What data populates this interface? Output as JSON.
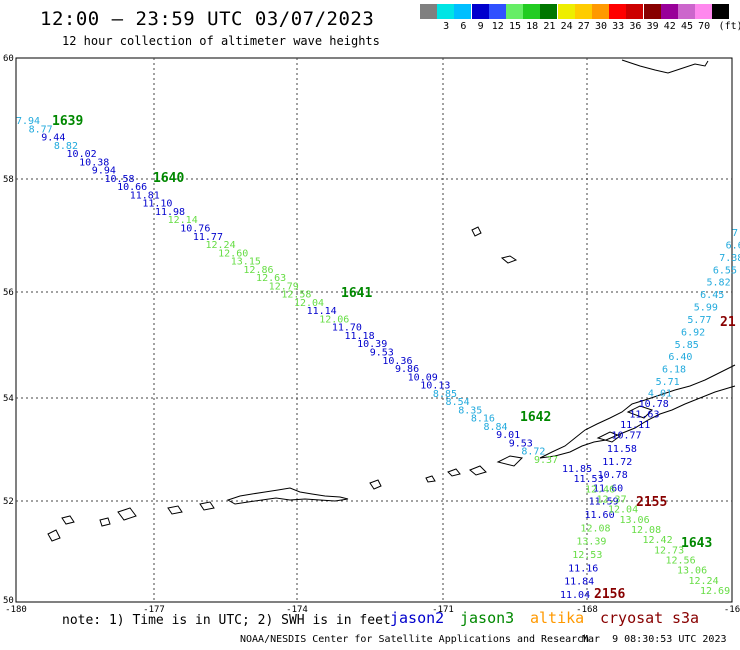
{
  "header": {
    "title": "12:00 – 23:59 UTC 03/07/2023",
    "subtitle": "12 hour collection of altimeter wave heights"
  },
  "scale": {
    "unit_label": "(ft)",
    "bins": [
      {
        "label": "",
        "color": "#808080"
      },
      {
        "label": "3",
        "color": "#00e5e5"
      },
      {
        "label": "6",
        "color": "#00bfff"
      },
      {
        "label": "9",
        "color": "#0000cd"
      },
      {
        "label": "12",
        "color": "#3050ff"
      },
      {
        "label": "15",
        "color": "#66ee66"
      },
      {
        "label": "18",
        "color": "#22cc22"
      },
      {
        "label": "21",
        "color": "#007700"
      },
      {
        "label": "24",
        "color": "#eeee00"
      },
      {
        "label": "27",
        "color": "#ffcc00"
      },
      {
        "label": "30",
        "color": "#ff9900"
      },
      {
        "label": "33",
        "color": "#ff0000"
      },
      {
        "label": "36",
        "color": "#cc0000"
      },
      {
        "label": "39",
        "color": "#880000"
      },
      {
        "label": "42",
        "color": "#990099"
      },
      {
        "label": "45",
        "color": "#cc66cc"
      },
      {
        "label": "70",
        "color": "#ff88ee"
      },
      {
        "label": "",
        "color": "#000000"
      }
    ]
  },
  "axes": {
    "lat_labels": [
      "60",
      "58",
      "56",
      "54",
      "52",
      "50"
    ],
    "lon_labels": [
      "-180",
      "-177",
      "-174",
      "-171",
      "-168",
      "-16"
    ]
  },
  "track_labels": [
    {
      "text": "1639",
      "color": "#008800"
    },
    {
      "text": "1640",
      "color": "#008800"
    },
    {
      "text": "1641",
      "color": "#008800"
    },
    {
      "text": "1642",
      "color": "#008800"
    },
    {
      "text": "1643",
      "color": "#008800"
    },
    {
      "text": "2155",
      "color": "#880000"
    },
    {
      "text": "2156",
      "color": "#880000"
    },
    {
      "text": "21",
      "color": "#880000"
    }
  ],
  "track_a": [
    {
      "v": "7.94",
      "c": "#22aadd"
    },
    {
      "v": "8.77",
      "c": "#22aadd"
    },
    {
      "v": "9.44",
      "c": "#0000cc"
    },
    {
      "v": "8.82",
      "c": "#22aadd"
    },
    {
      "v": "10.02",
      "c": "#0000cc"
    },
    {
      "v": "10.38",
      "c": "#0000cc"
    },
    {
      "v": "9.94",
      "c": "#0000cc"
    },
    {
      "v": "10.58",
      "c": "#0000cc"
    },
    {
      "v": "10.66",
      "c": "#0000cc"
    },
    {
      "v": "11.81",
      "c": "#0000cc"
    },
    {
      "v": "11.10",
      "c": "#0000cc"
    },
    {
      "v": "11.98",
      "c": "#0000cc"
    },
    {
      "v": "12.14",
      "c": "#66dd44"
    },
    {
      "v": "10.76",
      "c": "#0000cc"
    },
    {
      "v": "11.77",
      "c": "#0000cc"
    },
    {
      "v": "12.24",
      "c": "#66dd44"
    },
    {
      "v": "12.60",
      "c": "#66dd44"
    },
    {
      "v": "13.15",
      "c": "#66dd44"
    },
    {
      "v": "12.86",
      "c": "#66dd44"
    },
    {
      "v": "12.63",
      "c": "#66dd44"
    },
    {
      "v": "12.79",
      "c": "#66dd44"
    },
    {
      "v": "12.58",
      "c": "#66dd44"
    },
    {
      "v": "12.04",
      "c": "#66dd44"
    },
    {
      "v": "11.14",
      "c": "#0000cc"
    },
    {
      "v": "12.06",
      "c": "#66dd44"
    },
    {
      "v": "11.70",
      "c": "#0000cc"
    },
    {
      "v": "11.18",
      "c": "#0000cc"
    },
    {
      "v": "10.39",
      "c": "#0000cc"
    },
    {
      "v": "9.53",
      "c": "#0000cc"
    },
    {
      "v": "10.36",
      "c": "#0000cc"
    },
    {
      "v": "9.86",
      "c": "#0000cc"
    },
    {
      "v": "10.09",
      "c": "#0000cc"
    },
    {
      "v": "10.13",
      "c": "#0000cc"
    },
    {
      "v": "8.85",
      "c": "#22aadd"
    },
    {
      "v": "8.54",
      "c": "#22aadd"
    },
    {
      "v": "8.35",
      "c": "#22aadd"
    },
    {
      "v": "8.16",
      "c": "#22aadd"
    },
    {
      "v": "8.84",
      "c": "#22aadd"
    },
    {
      "v": "9.01",
      "c": "#0000cc"
    },
    {
      "v": "9.53",
      "c": "#0000cc"
    },
    {
      "v": "8.72",
      "c": "#22aadd"
    },
    {
      "v": "9.37",
      "c": "#66dd44"
    }
  ],
  "track_b": [
    {
      "v": "7.",
      "c": "#22aadd"
    },
    {
      "v": "6.6",
      "c": "#22aadd"
    },
    {
      "v": "7.38",
      "c": "#22aadd"
    },
    {
      "v": "6.55",
      "c": "#22aadd"
    },
    {
      "v": "5.82",
      "c": "#22aadd"
    },
    {
      "v": "6.45",
      "c": "#22aadd"
    },
    {
      "v": "5.99",
      "c": "#22aadd"
    },
    {
      "v": "5.77",
      "c": "#22aadd"
    },
    {
      "v": "6.92",
      "c": "#22aadd"
    },
    {
      "v": "5.85",
      "c": "#22aadd"
    },
    {
      "v": "6.40",
      "c": "#22aadd"
    },
    {
      "v": "6.18",
      "c": "#22aadd"
    },
    {
      "v": "5.71",
      "c": "#22aadd"
    },
    {
      "v": "4.01",
      "c": "#22aadd"
    },
    {
      "v": "10.78",
      "c": "#0000cc"
    },
    {
      "v": "11.63",
      "c": "#0000cc"
    },
    {
      "v": "11.11",
      "c": "#0000cc"
    },
    {
      "v": "10.77",
      "c": "#0000cc"
    },
    {
      "v": "11.58",
      "c": "#0000cc"
    },
    {
      "v": "11.72",
      "c": "#0000cc"
    },
    {
      "v": "10.78",
      "c": "#0000cc"
    },
    {
      "v": "11.60",
      "c": "#0000cc"
    },
    {
      "v": "11.59",
      "c": "#0000cc"
    },
    {
      "v": "11.60",
      "c": "#0000cc"
    },
    {
      "v": "12.08",
      "c": "#66dd44"
    },
    {
      "v": "13.39",
      "c": "#66dd44"
    },
    {
      "v": "12.53",
      "c": "#66dd44"
    },
    {
      "v": "11.16",
      "c": "#0000cc"
    },
    {
      "v": "11.84",
      "c": "#0000cc"
    },
    {
      "v": "11.04",
      "c": "#0000cc"
    }
  ],
  "track_c": [
    {
      "v": "11.85",
      "c": "#0000cc"
    },
    {
      "v": "11.53",
      "c": "#0000cc"
    },
    {
      "v": "12.46",
      "c": "#66dd44"
    },
    {
      "v": "12.37",
      "c": "#66dd44"
    },
    {
      "v": "12.04",
      "c": "#66dd44"
    },
    {
      "v": "13.06",
      "c": "#66dd44"
    },
    {
      "v": "12.08",
      "c": "#66dd44"
    },
    {
      "v": "12.42",
      "c": "#66dd44"
    },
    {
      "v": "12.73",
      "c": "#66dd44"
    },
    {
      "v": "12.56",
      "c": "#66dd44"
    },
    {
      "v": "13.06",
      "c": "#66dd44"
    },
    {
      "v": "12.24",
      "c": "#66dd44"
    },
    {
      "v": "12.69",
      "c": "#66dd44"
    }
  ],
  "footer": {
    "note": "note: 1) Time is in UTC; 2) SWH is in feet",
    "satellites": [
      {
        "name": "jason2",
        "color": "#0000cc"
      },
      {
        "name": "jason3",
        "color": "#008800"
      },
      {
        "name": "altika",
        "color": "#ff9900"
      },
      {
        "name": "cryosat",
        "color": "#880000"
      },
      {
        "name": "s3a",
        "color": "#880000"
      }
    ],
    "credit": "NOAA/NESDIS Center for Satellite Applications and Research",
    "timestamp": "Mar  9 08:30:53 UTC 2023"
  }
}
